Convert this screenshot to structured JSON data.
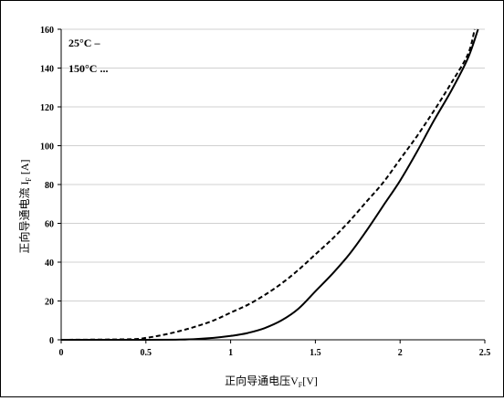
{
  "chart_data": {
    "type": "line",
    "title": "",
    "xlabel_main": "正向导通电压V",
    "xlabel_sub": "F",
    "xlabel_tail": "[V]",
    "ylabel_main": "正向导通电流 I",
    "ylabel_sub": "F",
    "ylabel_tail": " [A]",
    "xlim": [
      0,
      2.5
    ],
    "ylim": [
      0,
      160
    ],
    "x_ticks": [
      0,
      0.5,
      1,
      1.5,
      2,
      2.5
    ],
    "x_tick_labels": [
      "0",
      "0.5",
      "1",
      "1.5",
      "2",
      "2.5"
    ],
    "y_ticks": [
      0,
      20,
      40,
      60,
      80,
      100,
      120,
      140,
      160
    ],
    "y_tick_labels": [
      "0",
      "20",
      "40",
      "60",
      "80",
      "100",
      "120",
      "140",
      "160"
    ],
    "grid": "horizontal",
    "legend_position": "top-left",
    "legend": [
      "25°C –",
      "150°C ..."
    ],
    "series": [
      {
        "name": "25°C",
        "style": "solid",
        "color": "#000000",
        "x": [
          0,
          0.5,
          0.7,
          0.8,
          0.9,
          1.0,
          1.1,
          1.2,
          1.3,
          1.4,
          1.5,
          1.6,
          1.7,
          1.8,
          1.9,
          2.0,
          2.1,
          2.2,
          2.3,
          2.4,
          2.46
        ],
        "y": [
          0,
          0,
          0.1,
          0.4,
          1,
          2,
          3.5,
          6,
          10,
          16,
          25,
          34,
          44,
          56,
          69,
          82,
          97,
          113,
          128,
          145,
          160
        ]
      },
      {
        "name": "150°C",
        "style": "dashed",
        "color": "#000000",
        "x": [
          0,
          0.4,
          0.5,
          0.6,
          0.7,
          0.8,
          0.9,
          1.0,
          1.1,
          1.2,
          1.3,
          1.4,
          1.5,
          1.6,
          1.7,
          1.8,
          1.9,
          2.0,
          2.1,
          2.2,
          2.3,
          2.4,
          2.44
        ],
        "y": [
          0,
          0.3,
          1,
          2.5,
          4.5,
          7,
          10,
          14,
          18,
          23,
          29,
          36,
          44,
          52,
          61,
          71,
          81,
          93,
          105,
          118,
          132,
          147,
          160
        ]
      }
    ]
  }
}
